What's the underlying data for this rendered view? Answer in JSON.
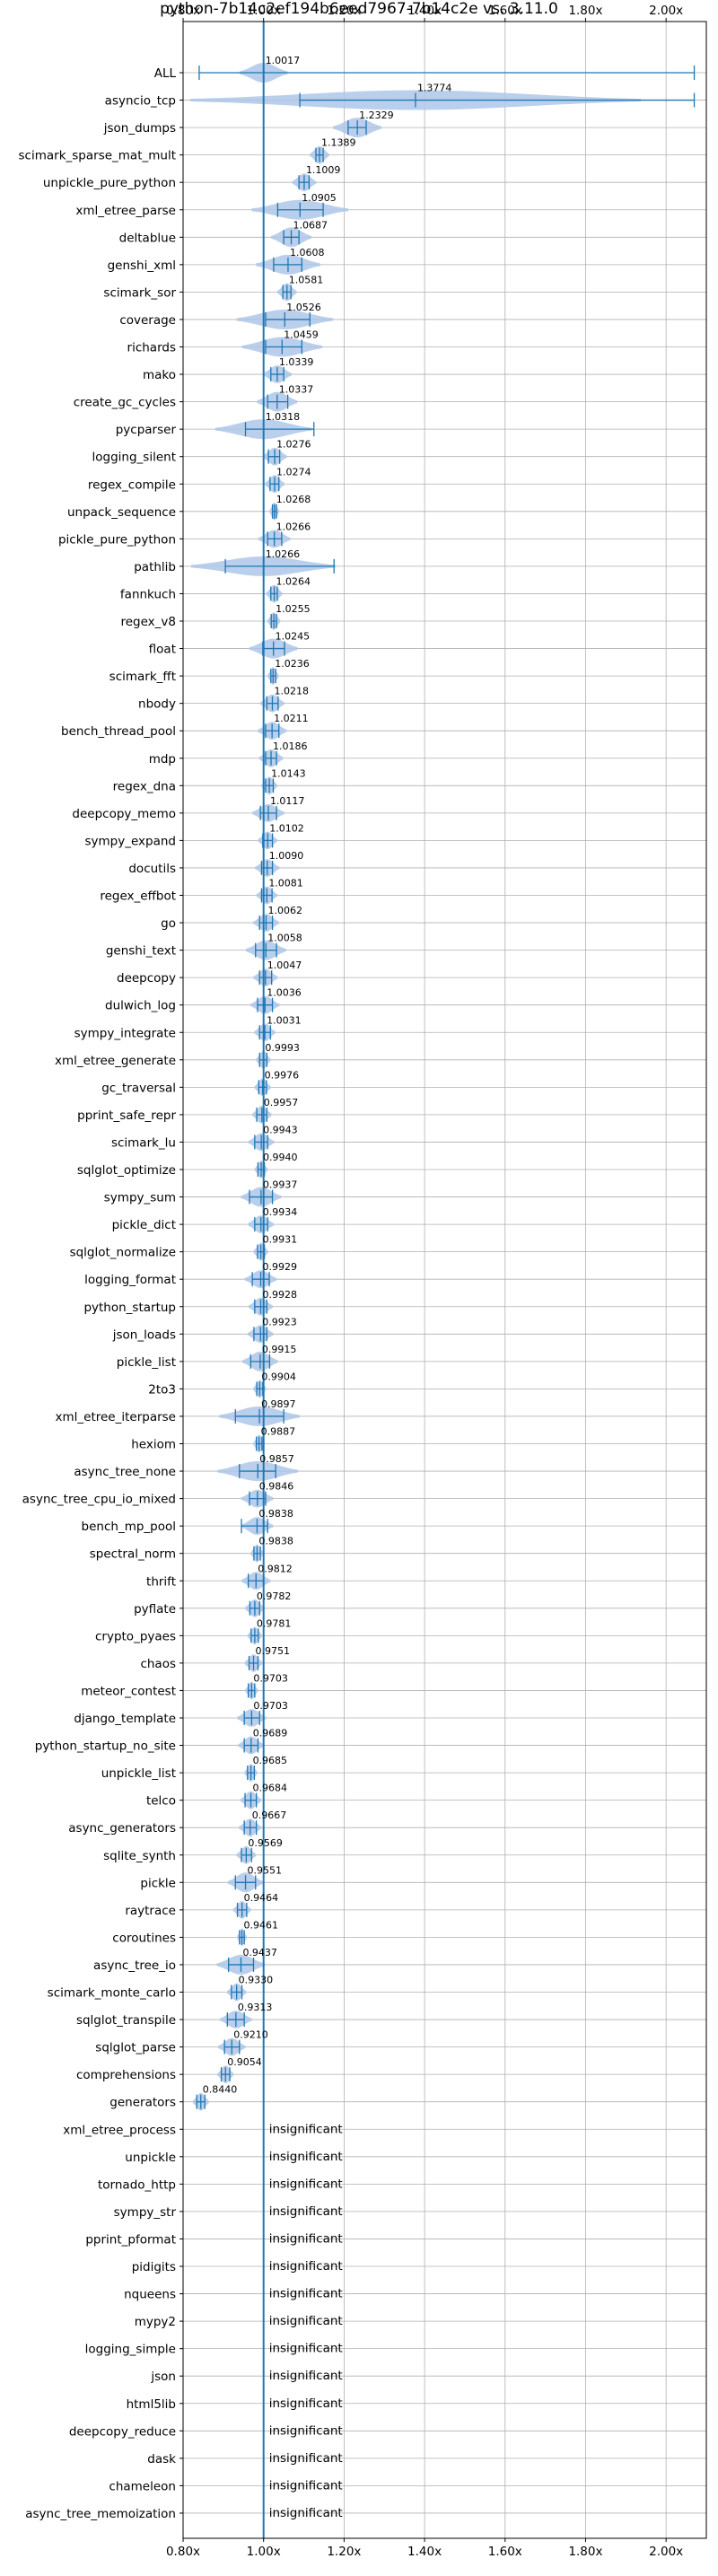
{
  "chart_data": {
    "type": "violin",
    "title": "python-7b14c2ef194b6eed7967-7b14c2e vs. 3.11.0",
    "xlabel": "",
    "ylabel": "",
    "x_scale": "linear",
    "xlim": [
      0.8,
      2.1
    ],
    "x_ticks": [
      0.8,
      1.0,
      1.2,
      1.4,
      1.6,
      1.8,
      2.0
    ],
    "x_tick_labels": [
      "0.80x",
      "1.00x",
      "1.20x",
      "1.40x",
      "1.60x",
      "1.80x",
      "2.00x"
    ],
    "x_ticks_shown_top_and_bottom": true,
    "reference_line": 1.0,
    "grid": true,
    "color": "#1f77b4",
    "violin_fill": "#aec7e8",
    "insignificant_text": "insignificant",
    "benchmarks": [
      {
        "name": "ALL",
        "label": "1.0017",
        "center": 1.0,
        "min": 0.84,
        "max": 2.07,
        "spread": 0.03
      },
      {
        "name": "asyncio_tcp",
        "label": "1.3774",
        "center": 1.3774,
        "min": 1.09,
        "max": 2.07,
        "spread": 0.28
      },
      {
        "name": "json_dumps",
        "label": "1.2329",
        "center": 1.2329,
        "min": 1.21,
        "max": 1.255,
        "spread": 0.03
      },
      {
        "name": "scimark_sparse_mat_mult",
        "label": "1.1389",
        "center": 1.1389,
        "min": 1.13,
        "max": 1.148,
        "spread": 0.012
      },
      {
        "name": "unpickle_pure_python",
        "label": "1.1009",
        "center": 1.1009,
        "min": 1.088,
        "max": 1.113,
        "spread": 0.015
      },
      {
        "name": "xml_etree_parse",
        "label": "1.0905",
        "center": 1.0905,
        "min": 1.035,
        "max": 1.148,
        "spread": 0.06
      },
      {
        "name": "deltablue",
        "label": "1.0687",
        "center": 1.0687,
        "min": 1.05,
        "max": 1.088,
        "spread": 0.025
      },
      {
        "name": "genshi_xml",
        "label": "1.0608",
        "center": 1.0608,
        "min": 1.025,
        "max": 1.095,
        "spread": 0.04
      },
      {
        "name": "scimark_sor",
        "label": "1.0581",
        "center": 1.0581,
        "min": 1.048,
        "max": 1.068,
        "spread": 0.012
      },
      {
        "name": "coverage",
        "label": "1.0526",
        "center": 1.0526,
        "min": 1.005,
        "max": 1.115,
        "spread": 0.06
      },
      {
        "name": "richards",
        "label": "1.0459",
        "center": 1.0459,
        "min": 1.005,
        "max": 1.095,
        "spread": 0.05
      },
      {
        "name": "mako",
        "label": "1.0339",
        "center": 1.0339,
        "min": 1.018,
        "max": 1.05,
        "spread": 0.018
      },
      {
        "name": "create_gc_cycles",
        "label": "1.0337",
        "center": 1.0337,
        "min": 1.01,
        "max": 1.06,
        "spread": 0.025
      },
      {
        "name": "pycparser",
        "label": "1.0318",
        "center": 1.0,
        "min": 0.955,
        "max": 1.125,
        "spread": 0.06
      },
      {
        "name": "logging_silent",
        "label": "1.0276",
        "center": 1.0276,
        "min": 1.012,
        "max": 1.04,
        "spread": 0.015
      },
      {
        "name": "regex_compile",
        "label": "1.0274",
        "center": 1.0274,
        "min": 1.016,
        "max": 1.038,
        "spread": 0.012
      },
      {
        "name": "unpack_sequence",
        "label": "1.0268",
        "center": 1.0268,
        "min": 1.022,
        "max": 1.032,
        "spread": 0.006
      },
      {
        "name": "pickle_pure_python",
        "label": "1.0266",
        "center": 1.0266,
        "min": 1.01,
        "max": 1.045,
        "spread": 0.02
      },
      {
        "name": "pathlib",
        "label": "1.0266",
        "center": 1.0,
        "min": 0.905,
        "max": 1.175,
        "spread": 0.09
      },
      {
        "name": "fannkuch",
        "label": "1.0264",
        "center": 1.0264,
        "min": 1.018,
        "max": 1.034,
        "spread": 0.01
      },
      {
        "name": "regex_v8",
        "label": "1.0255",
        "center": 1.0255,
        "min": 1.019,
        "max": 1.032,
        "spread": 0.008
      },
      {
        "name": "float",
        "label": "1.0245",
        "center": 1.0245,
        "min": 0.998,
        "max": 1.052,
        "spread": 0.03
      },
      {
        "name": "scimark_fft",
        "label": "1.0236",
        "center": 1.0236,
        "min": 1.018,
        "max": 1.03,
        "spread": 0.007
      },
      {
        "name": "nbody",
        "label": "1.0218",
        "center": 1.0218,
        "min": 1.008,
        "max": 1.036,
        "spread": 0.015
      },
      {
        "name": "bench_thread_pool",
        "label": "1.0211",
        "center": 1.0211,
        "min": 1.005,
        "max": 1.038,
        "spread": 0.018
      },
      {
        "name": "mdp",
        "label": "1.0186",
        "center": 1.0186,
        "min": 1.005,
        "max": 1.032,
        "spread": 0.015
      },
      {
        "name": "regex_dna",
        "label": "1.0143",
        "center": 1.0143,
        "min": 1.005,
        "max": 1.024,
        "spread": 0.01
      },
      {
        "name": "deepcopy_memo",
        "label": "1.0117",
        "center": 1.0117,
        "min": 0.992,
        "max": 1.032,
        "spread": 0.02
      },
      {
        "name": "sympy_expand",
        "label": "1.0102",
        "center": 1.0102,
        "min": 0.998,
        "max": 1.022,
        "spread": 0.012
      },
      {
        "name": "docutils",
        "label": "1.0090",
        "center": 1.009,
        "min": 0.995,
        "max": 1.022,
        "spread": 0.015
      },
      {
        "name": "regex_effbot",
        "label": "1.0081",
        "center": 1.0081,
        "min": 0.995,
        "max": 1.021,
        "spread": 0.013
      },
      {
        "name": "go",
        "label": "1.0062",
        "center": 1.0062,
        "min": 0.99,
        "max": 1.022,
        "spread": 0.016
      },
      {
        "name": "genshi_text",
        "label": "1.0058",
        "center": 1.0058,
        "min": 0.98,
        "max": 1.032,
        "spread": 0.025
      },
      {
        "name": "deepcopy",
        "label": "1.0047",
        "center": 1.0047,
        "min": 0.99,
        "max": 1.02,
        "spread": 0.015
      },
      {
        "name": "dulwich_log",
        "label": "1.0036",
        "center": 1.0036,
        "min": 0.985,
        "max": 1.022,
        "spread": 0.018
      },
      {
        "name": "sympy_integrate",
        "label": "1.0031",
        "center": 1.0031,
        "min": 0.99,
        "max": 1.017,
        "spread": 0.013
      },
      {
        "name": "xml_etree_generate",
        "label": "0.9993",
        "center": 0.9993,
        "min": 0.99,
        "max": 1.008,
        "spread": 0.009
      },
      {
        "name": "gc_traversal",
        "label": "0.9976",
        "center": 0.9976,
        "min": 0.988,
        "max": 1.007,
        "spread": 0.01
      },
      {
        "name": "pprint_safe_repr",
        "label": "0.9957",
        "center": 0.9957,
        "min": 0.983,
        "max": 1.008,
        "spread": 0.012
      },
      {
        "name": "scimark_lu",
        "label": "0.9943",
        "center": 0.9943,
        "min": 0.978,
        "max": 1.01,
        "spread": 0.016
      },
      {
        "name": "sqlglot_optimize",
        "label": "0.9940",
        "center": 0.994,
        "min": 0.986,
        "max": 1.002,
        "spread": 0.008
      },
      {
        "name": "sympy_sum",
        "label": "0.9937",
        "center": 0.9937,
        "min": 0.965,
        "max": 1.022,
        "spread": 0.025
      },
      {
        "name": "pickle_dict",
        "label": "0.9934",
        "center": 0.9934,
        "min": 0.978,
        "max": 1.01,
        "spread": 0.016
      },
      {
        "name": "sqlglot_normalize",
        "label": "0.9931",
        "center": 0.9931,
        "min": 0.985,
        "max": 1.002,
        "spread": 0.009
      },
      {
        "name": "logging_format",
        "label": "0.9929",
        "center": 0.9929,
        "min": 0.972,
        "max": 1.014,
        "spread": 0.02
      },
      {
        "name": "python_startup",
        "label": "0.9928",
        "center": 0.9928,
        "min": 0.978,
        "max": 1.008,
        "spread": 0.015
      },
      {
        "name": "json_loads",
        "label": "0.9923",
        "center": 0.9923,
        "min": 0.976,
        "max": 1.008,
        "spread": 0.016
      },
      {
        "name": "pickle_list",
        "label": "0.9915",
        "center": 0.9915,
        "min": 0.968,
        "max": 1.015,
        "spread": 0.022
      },
      {
        "name": "2to3",
        "label": "0.9904",
        "center": 0.9904,
        "min": 0.983,
        "max": 0.998,
        "spread": 0.008
      },
      {
        "name": "xml_etree_iterparse",
        "label": "0.9897",
        "center": 0.9897,
        "min": 0.93,
        "max": 1.05,
        "spread": 0.05
      },
      {
        "name": "hexiom",
        "label": "0.9887",
        "center": 0.9887,
        "min": 0.982,
        "max": 0.996,
        "spread": 0.007
      },
      {
        "name": "async_tree_none",
        "label": "0.9857",
        "center": 0.9857,
        "min": 0.94,
        "max": 1.03,
        "spread": 0.05
      },
      {
        "name": "async_tree_cpu_io_mixed",
        "label": "0.9846",
        "center": 0.9846,
        "min": 0.965,
        "max": 1.005,
        "spread": 0.02
      },
      {
        "name": "bench_mp_pool",
        "label": "0.9838",
        "center": 0.9838,
        "min": 0.945,
        "max": 1.01,
        "spread": 0.02
      },
      {
        "name": "spectral_norm",
        "label": "0.9838",
        "center": 0.9838,
        "min": 0.976,
        "max": 0.992,
        "spread": 0.008
      },
      {
        "name": "thrift",
        "label": "0.9812",
        "center": 0.9812,
        "min": 0.962,
        "max": 1.0,
        "spread": 0.018
      },
      {
        "name": "pyflate",
        "label": "0.9782",
        "center": 0.9782,
        "min": 0.966,
        "max": 0.99,
        "spread": 0.012
      },
      {
        "name": "crypto_pyaes",
        "label": "0.9781",
        "center": 0.9781,
        "min": 0.969,
        "max": 0.987,
        "spread": 0.009
      },
      {
        "name": "chaos",
        "label": "0.9751",
        "center": 0.9751,
        "min": 0.964,
        "max": 0.986,
        "spread": 0.011
      },
      {
        "name": "meteor_contest",
        "label": "0.9703",
        "center": 0.9703,
        "min": 0.962,
        "max": 0.978,
        "spread": 0.008
      },
      {
        "name": "django_template",
        "label": "0.9703",
        "center": 0.9703,
        "min": 0.952,
        "max": 0.99,
        "spread": 0.018
      },
      {
        "name": "python_startup_no_site",
        "label": "0.9689",
        "center": 0.9689,
        "min": 0.952,
        "max": 0.986,
        "spread": 0.016
      },
      {
        "name": "unpickle_list",
        "label": "0.9685",
        "center": 0.9685,
        "min": 0.96,
        "max": 0.977,
        "spread": 0.008
      },
      {
        "name": "telco",
        "label": "0.9684",
        "center": 0.9684,
        "min": 0.954,
        "max": 0.982,
        "spread": 0.013
      },
      {
        "name": "async_generators",
        "label": "0.9667",
        "center": 0.9667,
        "min": 0.952,
        "max": 0.982,
        "spread": 0.014
      },
      {
        "name": "sqlite_synth",
        "label": "0.9569",
        "center": 0.9569,
        "min": 0.945,
        "max": 0.97,
        "spread": 0.012
      },
      {
        "name": "pickle",
        "label": "0.9551",
        "center": 0.9551,
        "min": 0.93,
        "max": 0.98,
        "spread": 0.022
      },
      {
        "name": "raytrace",
        "label": "0.9464",
        "center": 0.9464,
        "min": 0.935,
        "max": 0.958,
        "spread": 0.011
      },
      {
        "name": "coroutines",
        "label": "0.9461",
        "center": 0.9461,
        "min": 0.94,
        "max": 0.952,
        "spread": 0.006
      },
      {
        "name": "async_tree_io",
        "label": "0.9437",
        "center": 0.9437,
        "min": 0.913,
        "max": 0.975,
        "spread": 0.03
      },
      {
        "name": "scimark_monte_carlo",
        "label": "0.9330",
        "center": 0.933,
        "min": 0.92,
        "max": 0.946,
        "spread": 0.012
      },
      {
        "name": "sqlglot_transpile",
        "label": "0.9313",
        "center": 0.9313,
        "min": 0.91,
        "max": 0.952,
        "spread": 0.02
      },
      {
        "name": "sqlglot_parse",
        "label": "0.9210",
        "center": 0.921,
        "min": 0.903,
        "max": 0.94,
        "spread": 0.017
      },
      {
        "name": "comprehensions",
        "label": "0.9054",
        "center": 0.9054,
        "min": 0.895,
        "max": 0.916,
        "spread": 0.01
      },
      {
        "name": "generators",
        "label": "0.8440",
        "center": 0.844,
        "min": 0.834,
        "max": 0.854,
        "spread": 0.01
      },
      {
        "name": "xml_etree_process",
        "label": "insignificant",
        "insignificant": true
      },
      {
        "name": "unpickle",
        "label": "insignificant",
        "insignificant": true
      },
      {
        "name": "tornado_http",
        "label": "insignificant",
        "insignificant": true
      },
      {
        "name": "sympy_str",
        "label": "insignificant",
        "insignificant": true
      },
      {
        "name": "pprint_pformat",
        "label": "insignificant",
        "insignificant": true
      },
      {
        "name": "pidigits",
        "label": "insignificant",
        "insignificant": true
      },
      {
        "name": "nqueens",
        "label": "insignificant",
        "insignificant": true
      },
      {
        "name": "mypy2",
        "label": "insignificant",
        "insignificant": true
      },
      {
        "name": "logging_simple",
        "label": "insignificant",
        "insignificant": true
      },
      {
        "name": "json",
        "label": "insignificant",
        "insignificant": true
      },
      {
        "name": "html5lib",
        "label": "insignificant",
        "insignificant": true
      },
      {
        "name": "deepcopy_reduce",
        "label": "insignificant",
        "insignificant": true
      },
      {
        "name": "dask",
        "label": "insignificant",
        "insignificant": true
      },
      {
        "name": "chameleon",
        "label": "insignificant",
        "insignificant": true
      },
      {
        "name": "async_tree_memoization",
        "label": "insignificant",
        "insignificant": true
      }
    ]
  }
}
